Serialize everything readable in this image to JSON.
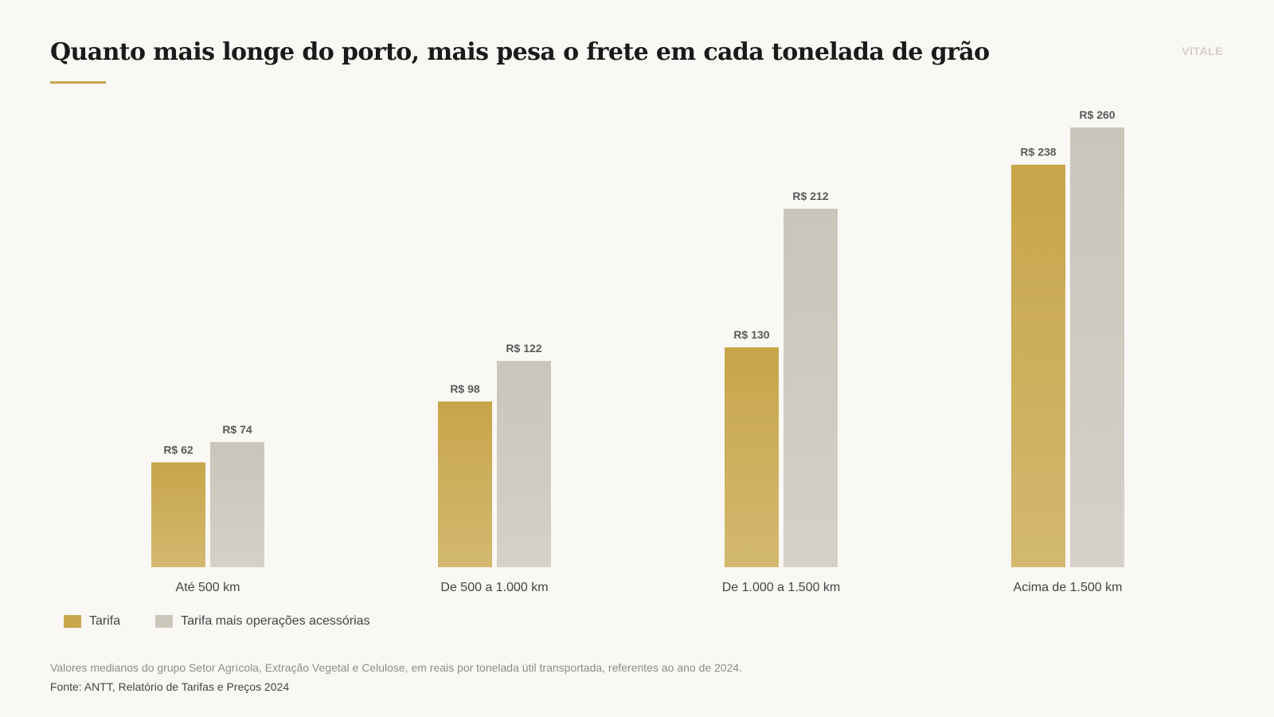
{
  "header": {
    "title": "Quanto mais longe do porto, mais pesa o frete em cada tonelada de grão",
    "brand": "VITALE"
  },
  "footer": {
    "note": "Valores medianos do grupo Setor Agrícola, Extração Vegetal e Celulose, em reais por tonelada útil transportada, referentes ao ano de 2024.",
    "source": "Fonte: ANTT, Relatório de Tarifas e Preços 2024"
  },
  "colors": {
    "tarifa": "#c9a74d",
    "acessorias": "#cbc7bc"
  },
  "chart_data": {
    "type": "bar",
    "title": "Quanto mais longe do porto, mais pesa o frete em cada tonelada de grão",
    "xlabel": "",
    "ylabel": "",
    "ylim": [
      0,
      260
    ],
    "grid": false,
    "legend_position": "bottom-left",
    "value_prefix": "R$ ",
    "categories": [
      "Até 500 km",
      "De 500 a 1.000 km",
      "De 1.000 a 1.500 km",
      "Acima de 1.500 km"
    ],
    "series": [
      {
        "name": "Tarifa",
        "values": [
          62,
          98,
          130,
          238
        ]
      },
      {
        "name": "Tarifa mais operações acessórias",
        "values": [
          74,
          122,
          212,
          260
        ]
      }
    ]
  }
}
